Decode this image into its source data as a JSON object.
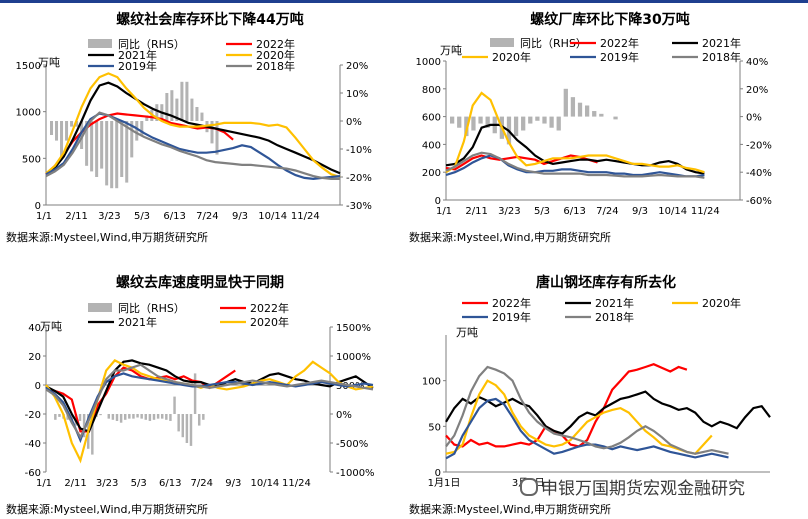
{
  "source_note": "数据来源:Mysteel,Wind,申万期货研究所",
  "watermark": "申银万国期货宏观金融研究",
  "colors": {
    "yoy": "#b3b3b3",
    "y2022": "#ff0000",
    "y2021": "#000000",
    "y2020": "#ffc000",
    "y2019": "#2f5597",
    "y2018": "#808080",
    "frame": "#1f3f8f"
  },
  "chart_data": [
    {
      "id": "rebar_social",
      "type": "line",
      "title": "螺纹社会库存环比下降44万吨",
      "left_unit": "万吨",
      "ylim_left": [
        0,
        1500
      ],
      "yticks_left": [
        "0",
        "500",
        "1000",
        "1500"
      ],
      "ylim_right": [
        -30,
        20
      ],
      "yticks_right": [
        "-30%",
        "-20%",
        "-10%",
        "0%",
        "10%",
        "20%"
      ],
      "xticks": [
        "1/1",
        "2/11",
        "3/23",
        "5/3",
        "6/13",
        "7/24",
        "9/3",
        "10/14",
        "11/24"
      ],
      "legend": [
        "同比（RHS）",
        "2022年",
        "2021年",
        "2020年",
        "2019年",
        "2018年"
      ],
      "yoy_pct_bars": [
        -5,
        -7,
        -13,
        -7,
        -2,
        -2,
        -10,
        -16,
        -18,
        -20,
        -17,
        -23,
        -24,
        -24,
        -20,
        -22,
        -13,
        -7,
        -5,
        2,
        4,
        6,
        6,
        10,
        11,
        8,
        14,
        14,
        8,
        5,
        3,
        -4,
        -8,
        -12
      ],
      "series": [
        {
          "name": "2022年",
          "values": [
            330,
            420,
            540,
            680,
            780,
            860,
            920,
            960,
            980,
            970,
            960,
            950,
            940,
            920,
            880,
            860,
            840,
            820,
            830,
            820,
            780,
            700
          ]
        },
        {
          "name": "2021年",
          "values": [
            340,
            400,
            520,
            700,
            900,
            1120,
            1280,
            1310,
            1270,
            1200,
            1140,
            1080,
            1030,
            990,
            960,
            920,
            880,
            860,
            840,
            820,
            800,
            780,
            760,
            740,
            720,
            690,
            640,
            600,
            560,
            520,
            480,
            430,
            380,
            340
          ]
        },
        {
          "name": "2020年",
          "values": [
            340,
            420,
            560,
            800,
            1050,
            1250,
            1370,
            1410,
            1370,
            1250,
            1150,
            1040,
            960,
            900,
            860,
            840,
            840,
            840,
            850,
            860,
            880,
            880,
            880,
            880,
            870,
            850,
            860,
            830,
            720,
            600,
            480,
            400,
            330,
            300
          ]
        },
        {
          "name": "2019年",
          "values": [
            330,
            380,
            450,
            600,
            780,
            920,
            980,
            960,
            920,
            880,
            830,
            770,
            720,
            680,
            640,
            600,
            580,
            560,
            560,
            570,
            590,
            610,
            640,
            620,
            560,
            500,
            430,
            370,
            320,
            290,
            280,
            290,
            300,
            310
          ]
        },
        {
          "name": "2018年",
          "values": [
            310,
            360,
            430,
            560,
            720,
            900,
            990,
            960,
            900,
            840,
            780,
            730,
            690,
            650,
            620,
            580,
            550,
            520,
            480,
            460,
            450,
            440,
            430,
            430,
            420,
            410,
            400,
            390,
            370,
            340,
            310,
            290,
            280,
            280
          ]
        }
      ]
    },
    {
      "id": "rebar_mill",
      "type": "line",
      "title": "螺纹厂库环比下降30万吨",
      "left_unit": "万吨",
      "ylim_left": [
        0,
        1000
      ],
      "yticks_left": [
        "0",
        "200",
        "400",
        "600",
        "800",
        "1000"
      ],
      "ylim_right": [
        -60,
        40
      ],
      "yticks_right": [
        "-60%",
        "-40%",
        "-20%",
        "0%",
        "20%",
        "40%"
      ],
      "xticks": [
        "1/1",
        "2/11",
        "3/23",
        "5/3",
        "6/13",
        "7/24",
        "9/3",
        "10/14",
        "11/24"
      ],
      "legend": [
        "同比（RHS）",
        "2022年",
        "2021年",
        "2020年",
        "2019年",
        "2018年"
      ],
      "yoy_pct_bars": [
        -5,
        -8,
        -14,
        -10,
        -5,
        -8,
        -12,
        -16,
        -20,
        -14,
        -10,
        -5,
        -3,
        -5,
        -8,
        -10,
        20,
        14,
        10,
        8,
        4,
        2,
        0,
        -2
      ],
      "series": [
        {
          "name": "2022年",
          "values": [
            230,
            220,
            260,
            300,
            320,
            300,
            290,
            300,
            310,
            300,
            290,
            260,
            280,
            300,
            320,
            310,
            290,
            270
          ]
        },
        {
          "name": "2021年",
          "values": [
            250,
            260,
            300,
            380,
            520,
            540,
            540,
            500,
            430,
            380,
            320,
            280,
            260,
            270,
            280,
            290,
            290,
            280,
            290,
            280,
            270,
            260,
            250,
            250,
            270,
            280,
            260,
            220,
            200,
            190
          ]
        },
        {
          "name": "2020年",
          "values": [
            200,
            240,
            420,
            680,
            770,
            720,
            560,
            420,
            310,
            250,
            260,
            280,
            300,
            300,
            300,
            310,
            320,
            320,
            320,
            300,
            280,
            260,
            260,
            250,
            240,
            240,
            250,
            230,
            220,
            200
          ]
        },
        {
          "name": "2019年",
          "values": [
            180,
            200,
            230,
            270,
            300,
            320,
            300,
            250,
            220,
            200,
            200,
            210,
            210,
            220,
            220,
            210,
            200,
            200,
            200,
            190,
            190,
            180,
            180,
            190,
            200,
            190,
            180,
            170,
            170,
            180
          ]
        },
        {
          "name": "2018年",
          "values": [
            210,
            240,
            280,
            320,
            340,
            330,
            300,
            260,
            230,
            210,
            200,
            190,
            190,
            190,
            190,
            190,
            180,
            180,
            180,
            175,
            170,
            170,
            170,
            175,
            180,
            175,
            170,
            170,
            170,
            160
          ]
        }
      ]
    },
    {
      "id": "rebar_destock",
      "type": "line",
      "title": "螺纹去库速度明显快于同期",
      "left_unit": "万吨",
      "ylim_left": [
        -60,
        40
      ],
      "yticks_left": [
        "-60",
        "-40",
        "-20",
        "0",
        "20",
        "40"
      ],
      "ylim_right": [
        -1000,
        1500
      ],
      "yticks_right": [
        "-1000%",
        "-500%",
        "0%",
        "500%",
        "1000%",
        "1500%"
      ],
      "xticks": [
        "1/1",
        "2/11",
        "3/23",
        "5/3",
        "6/13",
        "7/24",
        "9/3",
        "10/14",
        "11/24"
      ],
      "legend": [
        "同比（RHS）",
        "2022年",
        "2021年",
        "2020年"
      ],
      "yoy_pct_bars": [
        0,
        -100,
        -50,
        -80,
        -100,
        -150,
        -200,
        -120,
        -400,
        -600,
        -700,
        -50,
        -20,
        0,
        -80,
        -100,
        -120,
        -150,
        -100,
        -80,
        -80,
        -60,
        -80,
        -100,
        -120,
        -100,
        -80,
        -80,
        -100,
        -120,
        300,
        -300,
        -400,
        -500,
        -550,
        700,
        -200,
        -100
      ],
      "series": [
        {
          "name": "2022年",
          "values": [
            -3,
            -4,
            -6,
            -10,
            -32,
            -32,
            -14,
            -6,
            6,
            12,
            10,
            6,
            4,
            5,
            6,
            4,
            6,
            3,
            2,
            -2,
            2,
            6,
            10
          ]
        },
        {
          "name": "2021年",
          "values": [
            -1,
            -4,
            -8,
            -20,
            -30,
            -32,
            -18,
            -4,
            10,
            16,
            17,
            15,
            14,
            12,
            10,
            6,
            3,
            2,
            2,
            0,
            -1,
            2,
            4,
            2,
            1,
            4,
            7,
            8,
            6,
            4,
            3,
            1,
            0,
            -1,
            2,
            4,
            6,
            2,
            -2
          ]
        },
        {
          "name": "2020年",
          "values": [
            0,
            -8,
            -20,
            -40,
            -52,
            -30,
            -10,
            10,
            17,
            14,
            12,
            8,
            6,
            4,
            3,
            2,
            1,
            0,
            -2,
            0,
            -2,
            -3,
            -2,
            -1,
            1,
            3,
            4,
            2,
            0,
            6,
            10,
            16,
            12,
            8,
            2,
            -1,
            -3,
            -2,
            -1
          ]
        },
        {
          "name": "2019年",
          "values": [
            -2,
            -6,
            -12,
            -24,
            -38,
            -22,
            -8,
            2,
            6,
            8,
            6,
            5,
            4,
            3,
            2,
            1,
            0,
            -1,
            -1,
            0,
            1,
            2,
            2,
            1,
            0,
            1,
            2,
            1,
            0,
            -1,
            0,
            1,
            2,
            1,
            0,
            -1,
            0,
            1,
            0
          ]
        },
        {
          "name": "2018年",
          "values": [
            -3,
            -7,
            -14,
            -26,
            -36,
            -24,
            -10,
            4,
            10,
            10,
            12,
            14,
            10,
            6,
            4,
            2,
            1,
            0,
            -1,
            -2,
            -1,
            0,
            1,
            2,
            3,
            2,
            1,
            0,
            -1,
            0,
            1,
            2,
            3,
            2,
            1,
            0,
            -1,
            -2,
            -3
          ]
        }
      ]
    },
    {
      "id": "tangshan_billet",
      "type": "line",
      "title": "唐山钢坯库存有所去化",
      "left_unit": "万吨",
      "ylim_left": [
        0,
        150
      ],
      "yticks_left": [
        "0",
        "50",
        "100"
      ],
      "xticks": [
        "1月1日",
        "3月1日"
      ],
      "legend": [
        "2022年",
        "2021年",
        "2020年",
        "2019年",
        "2018年"
      ],
      "series": [
        {
          "name": "2022年",
          "values": [
            40,
            30,
            28,
            35,
            30,
            32,
            28,
            28,
            30,
            32,
            30,
            35,
            50,
            45,
            40,
            30,
            28,
            35,
            55,
            70,
            90,
            100,
            110,
            112,
            115,
            118,
            114,
            110,
            115,
            112
          ]
        },
        {
          "name": "2021年",
          "values": [
            55,
            70,
            80,
            75,
            82,
            78,
            72,
            76,
            80,
            75,
            72,
            62,
            50,
            45,
            42,
            50,
            60,
            65,
            62,
            70,
            75,
            80,
            82,
            85,
            88,
            80,
            75,
            72,
            68,
            70,
            65,
            55,
            50,
            55,
            52,
            48,
            60,
            70,
            72,
            60
          ]
        },
        {
          "name": "2020年",
          "values": [
            20,
            22,
            30,
            60,
            85,
            100,
            95,
            85,
            65,
            50,
            40,
            35,
            30,
            28,
            30,
            35,
            45,
            55,
            60,
            65,
            68,
            70,
            65,
            55,
            45,
            38,
            30,
            28,
            25,
            22,
            20,
            30,
            40
          ]
        },
        {
          "name": "2019年",
          "values": [
            15,
            20,
            40,
            55,
            70,
            78,
            80,
            74,
            60,
            45,
            35,
            30,
            25,
            20,
            22,
            25,
            28,
            30,
            30,
            28,
            25,
            28,
            26,
            24,
            26,
            28,
            25,
            22,
            20,
            18,
            16,
            18,
            20,
            18,
            16
          ]
        },
        {
          "name": "2018年",
          "values": [
            28,
            40,
            62,
            88,
            105,
            115,
            112,
            108,
            100,
            80,
            65,
            55,
            48,
            42,
            40,
            38,
            35,
            32,
            28,
            26,
            28,
            32,
            38,
            45,
            50,
            45,
            38,
            30,
            26,
            22,
            20,
            22,
            24,
            22,
            20
          ]
        }
      ]
    }
  ]
}
